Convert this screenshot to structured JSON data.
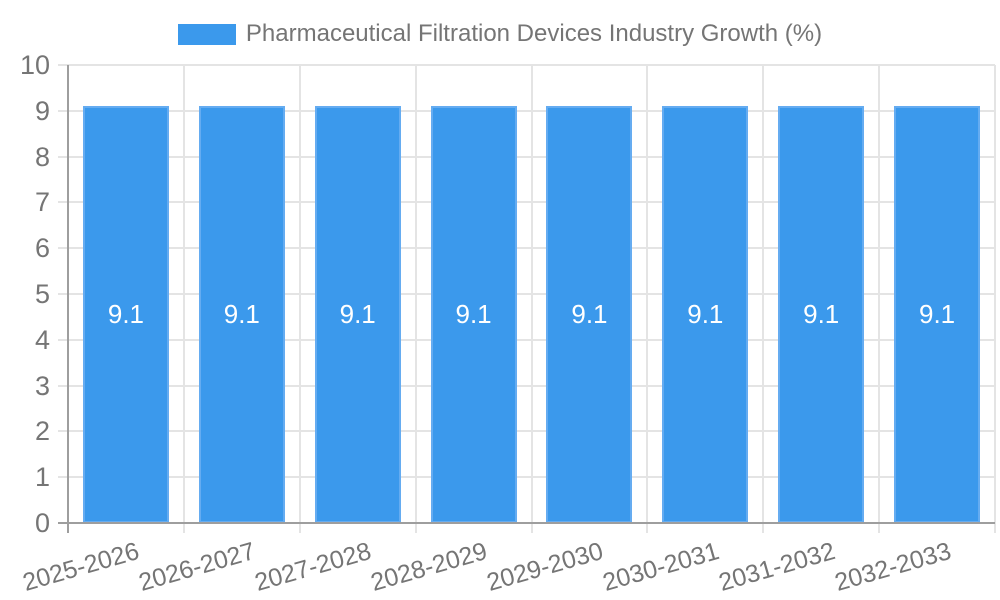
{
  "chart_data": {
    "type": "bar",
    "title": "Pharmaceutical Filtration Devices Industry Growth (%)",
    "xlabel": "",
    "ylabel": "",
    "categories": [
      "2025-2026",
      "2026-2027",
      "2027-2028",
      "2028-2029",
      "2029-2030",
      "2030-2031",
      "2031-2032",
      "2032-2033"
    ],
    "values": [
      9.1,
      9.1,
      9.1,
      9.1,
      9.1,
      9.1,
      9.1,
      9.1
    ],
    "bar_labels": [
      "9.1",
      "9.1",
      "9.1",
      "9.1",
      "9.1",
      "9.1",
      "9.1",
      "9.1"
    ],
    "ylim": [
      0,
      10
    ],
    "ytick_step": 1,
    "ytick_labels": [
      "0",
      "1",
      "2",
      "3",
      "4",
      "5",
      "6",
      "7",
      "8",
      "9",
      "10"
    ],
    "grid": true,
    "legend_position": "top",
    "colors": {
      "bar_fill": "#3b99ec",
      "bar_border": "#65acf1",
      "grid": "#e4e4e4",
      "axis": "#9e9e9e",
      "tick_label": "#757575",
      "bar_value_label": "#ffffff",
      "legend_text": "#757575"
    }
  }
}
